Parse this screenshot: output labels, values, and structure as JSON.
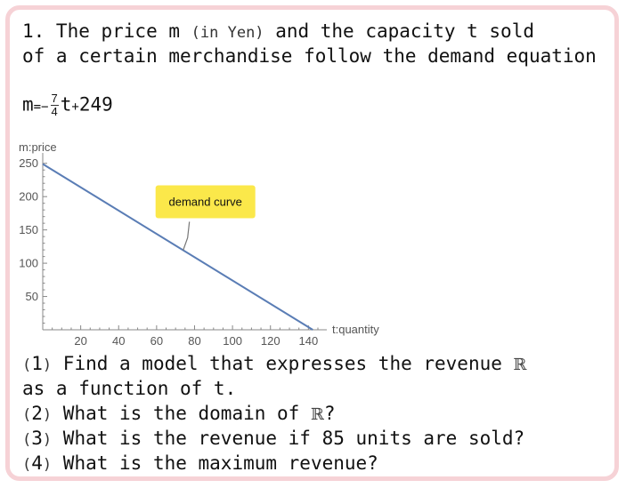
{
  "problem": {
    "line1": {
      "pre": "1. The price m ",
      "paren": "(in Yen)",
      "post": " and the capacity t sold"
    },
    "line2": "of a certain merchandise follow the demand equation",
    "equation": {
      "lhs": "m",
      "eq": "=",
      "minus": "−",
      "numerator": "7",
      "denominator": "4",
      "var": "t",
      "plus": "+",
      "const": "249"
    }
  },
  "chart_data": {
    "type": "line",
    "ylabel": "m:price",
    "xlabel": "t:quantity",
    "xlim": [
      0,
      145
    ],
    "ylim": [
      0,
      255
    ],
    "x_ticks": [
      20,
      40,
      60,
      80,
      100,
      120,
      140
    ],
    "y_ticks": [
      50,
      100,
      150,
      200,
      250
    ],
    "series": [
      {
        "x": [
          0,
          142.29
        ],
        "y": [
          249,
          0
        ]
      }
    ],
    "annotation": {
      "text": "demand curve",
      "x": 74,
      "y": 119.5
    },
    "colors": {
      "line": "#5a7db5",
      "annotation_bg": "#fbe84a",
      "axis": "#888888"
    }
  },
  "questions": [
    {
      "num": "1",
      "text": " Find a model that expresses the revenue ",
      "symbol": "ℝ",
      "tail": ""
    },
    {
      "cont": "as a function of t."
    },
    {
      "num": "2",
      "text": " What is the domain of ",
      "symbol": "ℝ",
      "tail": "?"
    },
    {
      "num": "3",
      "text": " What is the revenue if 85 units are sold?",
      "symbol": "",
      "tail": ""
    },
    {
      "num": "4",
      "text": " What is the maximum revenue?",
      "symbol": "",
      "tail": ""
    }
  ]
}
